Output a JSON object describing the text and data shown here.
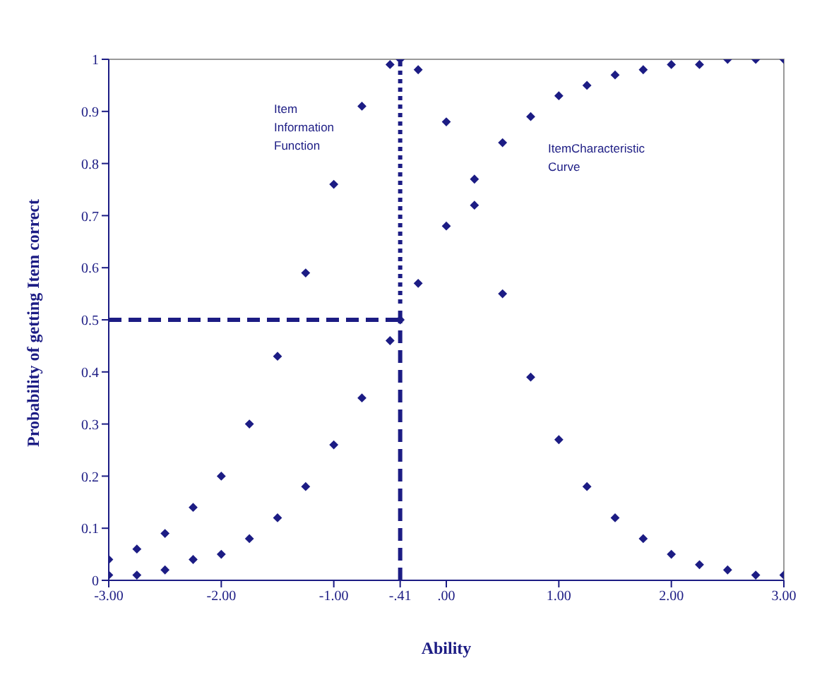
{
  "chart_data": {
    "type": "scatter",
    "xlabel": "Ability",
    "ylabel": "Probability of getting Item correct",
    "xlim": [
      -3,
      3
    ],
    "ylim": [
      0,
      1
    ],
    "xticks": [
      {
        "value": -3,
        "label": "-3.00"
      },
      {
        "value": -2,
        "label": "-2.00"
      },
      {
        "value": -1,
        "label": "-1.00"
      },
      {
        "value": -0.41,
        "label": "-.41"
      },
      {
        "value": 0,
        "label": ".00"
      },
      {
        "value": 1,
        "label": "1.00"
      },
      {
        "value": 2,
        "label": "2.00"
      },
      {
        "value": 3,
        "label": "3.00"
      }
    ],
    "yticks": [
      0,
      0.1,
      0.2,
      0.3,
      0.4,
      0.5,
      0.6,
      0.7,
      0.8,
      0.9,
      1
    ],
    "marker": "diamond",
    "ref_lines": [
      {
        "axis": "y",
        "value": 0.5,
        "line_style": "dashed",
        "color": "#1c1c84"
      },
      {
        "axis": "x",
        "value": -0.41,
        "line_style": "dashed",
        "color": "#1c1c84"
      }
    ],
    "series": [
      {
        "color": "#1c1c84",
        "x": [
          -3,
          -2.75,
          -2.5,
          -2.25,
          -2,
          -1.75,
          -1.5,
          -1.25,
          -1,
          -0.75,
          -0.5,
          -0.41,
          -0.25,
          0,
          0.25,
          0.5,
          0.75,
          1,
          1.25,
          1.5,
          1.75,
          2,
          2.25,
          2.5,
          2.75,
          3
        ],
        "values": [
          0.04,
          0.06,
          0.09,
          0.14,
          0.2,
          0.3,
          0.43,
          0.59,
          0.76,
          0.91,
          0.99,
          1,
          0.98,
          0.88,
          0.72,
          0.55,
          0.39,
          0.27,
          0.18,
          0.12,
          0.08,
          0.05,
          0.03,
          0.02,
          0.01,
          0.01
        ]
      },
      {
        "color": "#1c1c84",
        "x": [
          -3,
          -2.75,
          -2.5,
          -2.25,
          -2,
          -1.75,
          -1.5,
          -1.25,
          -1,
          -0.75,
          -0.5,
          -0.41,
          -0.25,
          0,
          0.25,
          0.5,
          0.75,
          1,
          1.25,
          1.5,
          1.75,
          2,
          2.25,
          2.5,
          2.75,
          3
        ],
        "values": [
          0.01,
          0.01,
          0.02,
          0.04,
          0.05,
          0.08,
          0.12,
          0.18,
          0.26,
          0.35,
          0.46,
          0.5,
          0.57,
          0.68,
          0.77,
          0.84,
          0.89,
          0.93,
          0.95,
          0.97,
          0.98,
          0.99,
          0.99,
          1,
          1,
          1
        ]
      }
    ],
    "annotations": [
      "Item Information Function",
      "ItemCharacteristic Curve"
    ]
  }
}
